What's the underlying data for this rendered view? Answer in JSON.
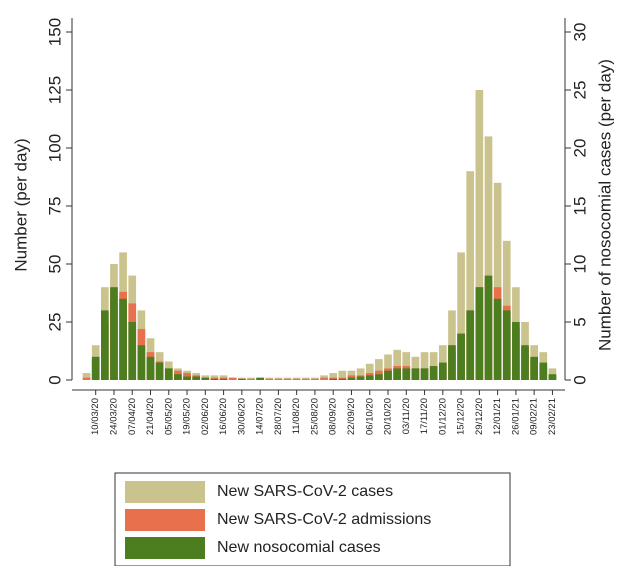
{
  "chart_data": {
    "type": "bar",
    "ylabel": "Number (per day)",
    "y2label": "Number of nosocomial cases (per day)",
    "categories": [
      null,
      "10/03/20",
      null,
      "24/03/20",
      null,
      "07/04/20",
      null,
      "21/04/20",
      null,
      "05/05/20",
      null,
      "19/05/20",
      null,
      "02/06/20",
      null,
      "16/06/20",
      null,
      "30/06/20",
      null,
      "14/07/20",
      null,
      "28/07/20",
      null,
      "11/08/20",
      null,
      "25/08/20",
      null,
      "08/09/20",
      null,
      "22/09/20",
      null,
      "06/10/20",
      null,
      "20/10/20",
      null,
      "03/11/20",
      null,
      "17/11/20",
      null,
      "01/12/20",
      null,
      "15/12/20",
      null,
      "29/12/20",
      null,
      "12/01/21",
      null,
      "26/01/21",
      null,
      "09/02/21",
      null,
      "23/02/21"
    ],
    "series": [
      {
        "name": "New SARS-CoV-2 cases",
        "color": "#cbc38e",
        "values": [
          3,
          15,
          40,
          50,
          55,
          45,
          30,
          18,
          12,
          8,
          5,
          4,
          3,
          2,
          2,
          2,
          1,
          1,
          1,
          1,
          1,
          1,
          1,
          1,
          1,
          1,
          2,
          3,
          4,
          4,
          5,
          7,
          9,
          11,
          13,
          12,
          10,
          12,
          12,
          15,
          30,
          55,
          90,
          125,
          105,
          85,
          60,
          40,
          25,
          15,
          12,
          5
        ]
      },
      {
        "name": "New SARS-CoV-2 admissions",
        "color": "#e9704c",
        "values": [
          1,
          8,
          25,
          35,
          38,
          33,
          22,
          12,
          8,
          5,
          4,
          3,
          2,
          1,
          1,
          1,
          1,
          0.5,
          0.5,
          0.5,
          0.5,
          0.5,
          0.5,
          0.5,
          0.5,
          0.5,
          1,
          1,
          1,
          2,
          2,
          3,
          4,
          5,
          6,
          6,
          5,
          5,
          6,
          7,
          12,
          20,
          30,
          40,
          42,
          40,
          32,
          22,
          14,
          8,
          6,
          2
        ]
      },
      {
        "name": "New nosocomial cases",
        "color": "#4c7d1e",
        "axis": "y2",
        "values": [
          0,
          2,
          6,
          8,
          7,
          5,
          3,
          2,
          1.5,
          1,
          0.5,
          0.3,
          0.3,
          0.2,
          0.1,
          0.1,
          0,
          0.1,
          0,
          0.2,
          0,
          0,
          0,
          0,
          0,
          0,
          0,
          0.1,
          0.1,
          0.2,
          0.3,
          0.4,
          0.5,
          0.8,
          1,
          1,
          1,
          1,
          1.2,
          1.5,
          3,
          4,
          6,
          8,
          9,
          7,
          6,
          5,
          3,
          2,
          1.5,
          0.5
        ]
      }
    ],
    "ylim": [
      0,
      150
    ],
    "yticks": [
      0,
      25,
      50,
      75,
      100,
      125,
      150
    ],
    "y2lim": [
      0,
      30
    ],
    "y2ticks": [
      0,
      5,
      10,
      15,
      20,
      25,
      30
    ],
    "legend": "bottom"
  }
}
